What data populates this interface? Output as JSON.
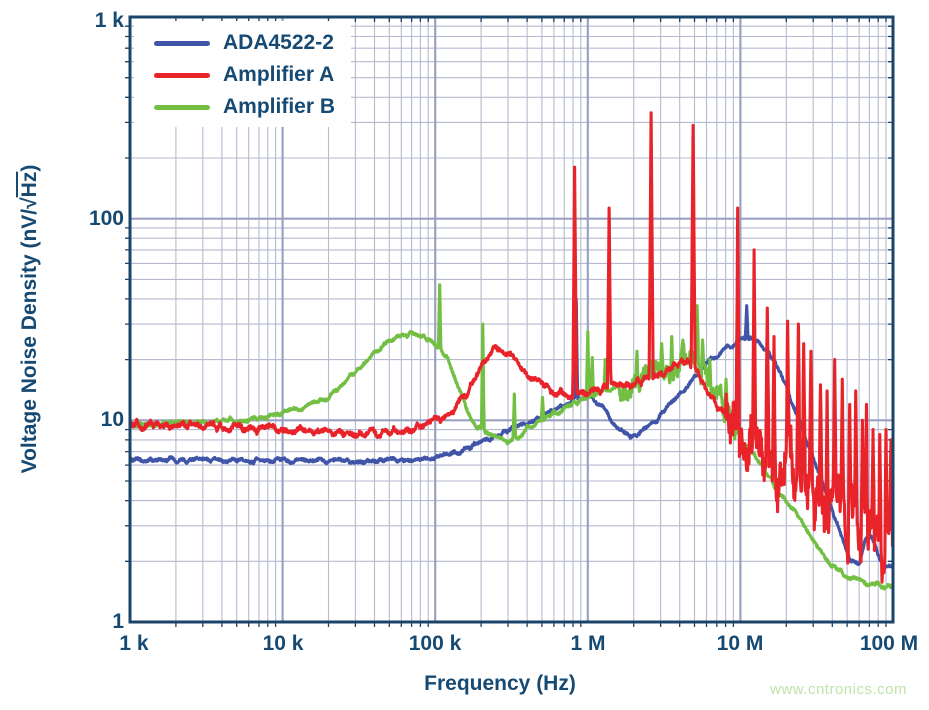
{
  "watermark": {
    "text": "www.cntronics.com",
    "color": "#bfe3ab"
  },
  "chart_data": {
    "type": "line",
    "title": "",
    "xlabel": "Frequency (Hz)",
    "ylabel": {
      "prefix": "Voltage Noise Density (nV/",
      "radical": "√",
      "radicand": "Hz",
      "suffix": ")"
    },
    "x_scale": "log",
    "y_scale": "log",
    "x_range": [
      1000,
      100000000
    ],
    "y_range": [
      1,
      1000
    ],
    "grid": {
      "minor_color": "#b6bad1",
      "major_color": "#9ba1c2",
      "frame_color": "#1a4468",
      "minor": true,
      "major": true
    },
    "text_color": "#164a73",
    "legend_position": "top-left",
    "x_ticks": [
      {
        "value": 1000,
        "label": "1 k"
      },
      {
        "value": 10000,
        "label": "10 k"
      },
      {
        "value": 100000,
        "label": "100 k"
      },
      {
        "value": 1000000,
        "label": "1 M"
      },
      {
        "value": 10000000,
        "label": "10 M"
      },
      {
        "value": 100000000,
        "label": "100 M"
      }
    ],
    "y_ticks": [
      {
        "value": 1,
        "label": "1"
      },
      {
        "value": 10,
        "label": "10"
      },
      {
        "value": 100,
        "label": "100"
      },
      {
        "value": 1000,
        "label": "1 k"
      }
    ],
    "series": [
      {
        "name": "ADA4522-2",
        "color": "#4054a8",
        "z": 1,
        "noise": 0.015,
        "hf_noise": null,
        "points": [
          [
            1000,
            6.4
          ],
          [
            2000,
            6.35
          ],
          [
            4000,
            6.3
          ],
          [
            8000,
            6.35
          ],
          [
            15000,
            6.3
          ],
          [
            30000,
            6.3
          ],
          [
            60000,
            6.35
          ],
          [
            100000,
            6.5
          ],
          [
            150000,
            7.0
          ],
          [
            200000,
            7.8
          ],
          [
            250000,
            8.4
          ],
          [
            300000,
            8.9
          ],
          [
            400000,
            9.7
          ],
          [
            500000,
            10.4
          ],
          [
            630000,
            11.5
          ],
          [
            800000,
            12.6
          ],
          [
            1000000,
            13.4
          ],
          [
            1200000,
            12.0
          ],
          [
            1400000,
            10.3
          ],
          [
            1600000,
            9.2
          ],
          [
            1800000,
            8.4
          ],
          [
            2100000,
            8.4
          ],
          [
            2400000,
            9.0
          ],
          [
            2800000,
            10.0
          ],
          [
            3300000,
            11.5
          ],
          [
            4000000,
            13.5
          ],
          [
            4700000,
            15.5
          ],
          [
            5500000,
            17.5
          ],
          [
            6500000,
            20.0
          ],
          [
            7500000,
            22.0
          ],
          [
            8500000,
            23.5
          ],
          [
            10000000,
            25.0
          ],
          [
            12000000,
            25.0
          ],
          [
            13500000,
            24.0
          ],
          [
            15000000,
            22.5
          ],
          [
            17000000,
            19.5
          ],
          [
            20000000,
            14.5
          ],
          [
            23000000,
            11.0
          ],
          [
            27000000,
            8.0
          ],
          [
            32000000,
            5.8
          ],
          [
            38000000,
            4.0
          ],
          [
            45000000,
            2.8
          ],
          [
            52000000,
            2.1
          ],
          [
            60000000,
            1.9
          ],
          [
            66000000,
            2.6
          ],
          [
            72000000,
            2.7
          ],
          [
            80000000,
            2.1
          ],
          [
            90000000,
            1.9
          ],
          [
            100000000,
            1.85
          ]
        ],
        "spikes": [
          [
            840000,
            40,
            0.009
          ],
          [
            11000000,
            37,
            0.009
          ]
        ]
      },
      {
        "name": "Amplifier A",
        "color": "#e8232a",
        "z": 3,
        "noise": 0.024,
        "hf_noise": {
          "start": 8000000,
          "end": 100000000,
          "amp": 0.18
        },
        "points": [
          [
            1000,
            9.5
          ],
          [
            3000,
            9.3
          ],
          [
            6000,
            9.1
          ],
          [
            10000,
            9.0
          ],
          [
            20000,
            8.8
          ],
          [
            30000,
            8.6
          ],
          [
            50000,
            8.8
          ],
          [
            70000,
            9.2
          ],
          [
            100000,
            10.0
          ],
          [
            130000,
            11.0
          ],
          [
            160000,
            13.5
          ],
          [
            190000,
            17.0
          ],
          [
            220000,
            21.0
          ],
          [
            250000,
            23.0
          ],
          [
            280000,
            22.5
          ],
          [
            320000,
            20.5
          ],
          [
            360000,
            18.5
          ],
          [
            400000,
            17.0
          ],
          [
            500000,
            15.0
          ],
          [
            600000,
            14.0
          ],
          [
            800000,
            13.3
          ],
          [
            1000000,
            13.8
          ],
          [
            1300000,
            14.3
          ],
          [
            1600000,
            14.8
          ],
          [
            2000000,
            15.3
          ],
          [
            2500000,
            16.0
          ],
          [
            3000000,
            16.8
          ],
          [
            3500000,
            18.0
          ],
          [
            4000000,
            19.5
          ],
          [
            4500000,
            20.0
          ],
          [
            5000000,
            18.5
          ],
          [
            5500000,
            16.5
          ],
          [
            6000000,
            14.5
          ],
          [
            7000000,
            12.0
          ],
          [
            8000000,
            10.5
          ],
          [
            9000000,
            9.3
          ],
          [
            10000000,
            8.5
          ],
          [
            12000000,
            7.6
          ],
          [
            14000000,
            7.0
          ],
          [
            17000000,
            6.2
          ],
          [
            20000000,
            5.6
          ],
          [
            25000000,
            5.0
          ],
          [
            30000000,
            4.4
          ],
          [
            35000000,
            4.0
          ],
          [
            42000000,
            3.6
          ],
          [
            50000000,
            3.2
          ],
          [
            60000000,
            2.9
          ],
          [
            70000000,
            2.7
          ],
          [
            80000000,
            2.5
          ],
          [
            90000000,
            2.4
          ],
          [
            100000000,
            2.4
          ]
        ],
        "spikes": [
          [
            820000,
            180,
            0.012
          ],
          [
            1380000,
            113,
            0.011
          ],
          [
            2600000,
            335,
            0.013
          ],
          [
            4900000,
            290,
            0.013
          ],
          [
            9600000,
            113,
            0.011
          ],
          [
            12300000,
            70,
            0.011
          ],
          [
            15000000,
            36,
            0.01
          ],
          [
            16600000,
            26,
            0.01
          ],
          [
            20400000,
            31,
            0.01
          ],
          [
            24000000,
            30,
            0.01
          ],
          [
            26000000,
            24,
            0.01
          ],
          [
            29000000,
            22,
            0.01
          ],
          [
            33500000,
            15,
            0.009
          ],
          [
            37000000,
            14,
            0.009
          ],
          [
            41500000,
            20,
            0.01
          ],
          [
            46500000,
            16,
            0.009
          ],
          [
            52000000,
            12,
            0.009
          ],
          [
            57000000,
            14,
            0.009
          ],
          [
            63000000,
            10,
            0.009
          ],
          [
            67000000,
            12,
            0.009
          ],
          [
            74000000,
            9,
            0.009
          ],
          [
            82000000,
            8.5,
            0.009
          ],
          [
            90000000,
            9,
            0.009
          ],
          [
            97000000,
            8,
            0.009
          ]
        ]
      },
      {
        "name": "Amplifier B",
        "color": "#72bf44",
        "z": 2,
        "noise": 0.015,
        "hf_noise": {
          "start": 1600000,
          "end": 11000000,
          "amp": 0.06
        },
        "points": [
          [
            1000,
            9.6
          ],
          [
            2000,
            9.6
          ],
          [
            4000,
            9.9
          ],
          [
            7000,
            10.3
          ],
          [
            10000,
            10.8
          ],
          [
            15000,
            11.8
          ],
          [
            20000,
            13.0
          ],
          [
            30000,
            17.5
          ],
          [
            40000,
            21.5
          ],
          [
            50000,
            25.0
          ],
          [
            60000,
            26.5
          ],
          [
            70000,
            26.8
          ],
          [
            80000,
            26.3
          ],
          [
            90000,
            25.3
          ],
          [
            100000,
            24.0
          ],
          [
            120000,
            20.5
          ],
          [
            140000,
            15.0
          ],
          [
            160000,
            11.5
          ],
          [
            180000,
            9.6
          ],
          [
            210000,
            8.8
          ],
          [
            250000,
            8.1
          ],
          [
            300000,
            7.9
          ],
          [
            350000,
            8.1
          ],
          [
            400000,
            9.2
          ],
          [
            450000,
            9.6
          ],
          [
            500000,
            10.0
          ],
          [
            600000,
            10.8
          ],
          [
            700000,
            11.4
          ],
          [
            800000,
            12.0
          ],
          [
            1000000,
            13.2
          ],
          [
            1200000,
            13.8
          ],
          [
            1500000,
            14.6
          ],
          [
            2000000,
            15.6
          ],
          [
            2500000,
            16.5
          ],
          [
            3000000,
            17.4
          ],
          [
            3500000,
            18.2
          ],
          [
            4000000,
            19.0
          ],
          [
            4500000,
            19.3
          ],
          [
            5000000,
            19.0
          ],
          [
            5500000,
            18.0
          ],
          [
            6000000,
            16.5
          ],
          [
            7000000,
            13.5
          ],
          [
            8000000,
            11.0
          ],
          [
            9000000,
            9.5
          ],
          [
            10000000,
            8.4
          ],
          [
            12000000,
            6.9
          ],
          [
            15000000,
            5.4
          ],
          [
            18000000,
            4.4
          ],
          [
            22000000,
            3.6
          ],
          [
            27000000,
            2.9
          ],
          [
            33000000,
            2.3
          ],
          [
            40000000,
            1.9
          ],
          [
            50000000,
            1.7
          ],
          [
            60000000,
            1.6
          ],
          [
            70000000,
            1.55
          ],
          [
            80000000,
            1.55
          ],
          [
            90000000,
            1.5
          ],
          [
            100000000,
            1.55
          ]
        ],
        "spikes": [
          [
            107000,
            47,
            0.008
          ],
          [
            205000,
            30,
            0.009
          ],
          [
            330000,
            13.5,
            0.008
          ],
          [
            505000,
            13,
            0.008
          ],
          [
            1000000,
            27.5,
            0.009
          ],
          [
            1070000,
            20.5,
            0.008
          ],
          [
            1300000,
            20,
            0.008
          ],
          [
            2100000,
            22,
            0.009
          ],
          [
            2550000,
            20,
            0.008
          ],
          [
            3050000,
            24,
            0.009
          ],
          [
            3550000,
            26,
            0.009
          ],
          [
            4200000,
            25,
            0.009
          ],
          [
            5200000,
            37,
            0.01
          ],
          [
            5650000,
            25,
            0.009
          ],
          [
            6300000,
            20,
            0.009
          ],
          [
            8050000,
            16,
            0.008
          ]
        ]
      }
    ]
  }
}
